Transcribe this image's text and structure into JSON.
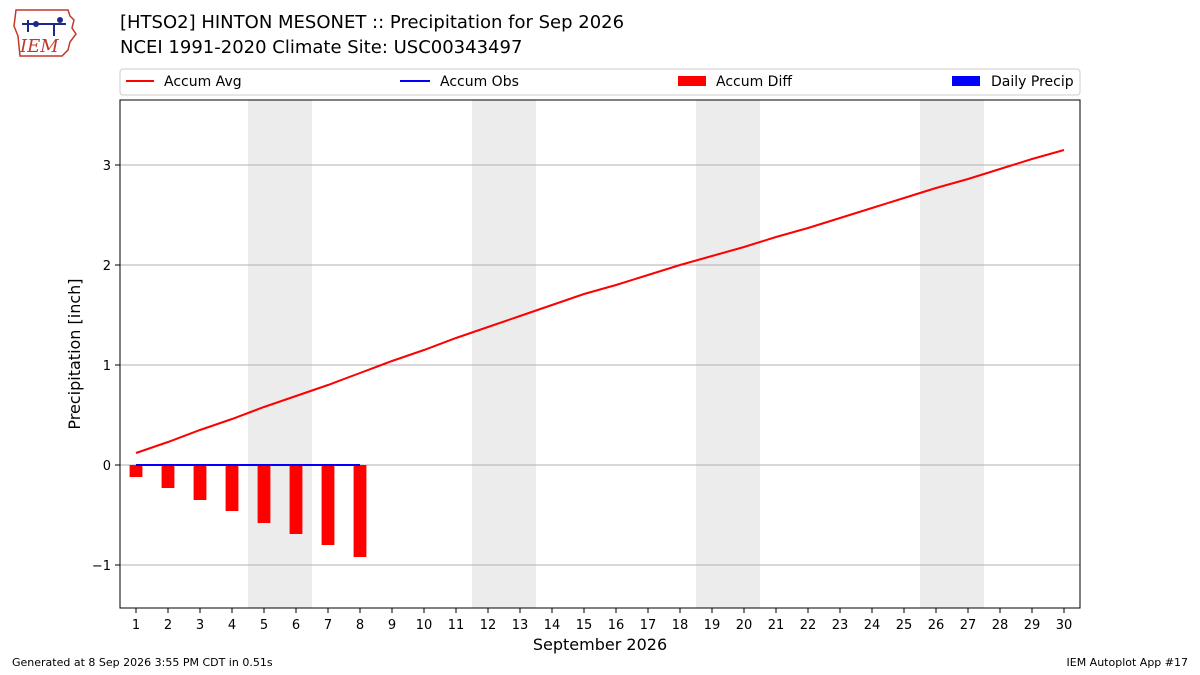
{
  "header": {
    "title": "[HTSO2] HINTON MESONET :: Precipitation for Sep 2026",
    "subtitle": "NCEI 1991-2020 Climate Site: USC00343497",
    "logo_text": "IEM"
  },
  "footer": {
    "generated": "Generated at 8 Sep 2026 3:55 PM CDT in 0.51s",
    "app": "IEM Autoplot App #17"
  },
  "chart_data": {
    "type": "line",
    "title": "[HTSO2] HINTON MESONET :: Precipitation for Sep 2026",
    "subtitle": "NCEI 1991-2020 Climate Site: USC00343497",
    "xlabel": "September 2026",
    "ylabel": "Precipitation [inch]",
    "x": [
      1,
      2,
      3,
      4,
      5,
      6,
      7,
      8,
      9,
      10,
      11,
      12,
      13,
      14,
      15,
      16,
      17,
      18,
      19,
      20,
      21,
      22,
      23,
      24,
      25,
      26,
      27,
      28,
      29,
      30
    ],
    "xlim": [
      0.5,
      30.5
    ],
    "ylim": [
      -1.43,
      3.65
    ],
    "yticks": [
      -1,
      0,
      1,
      2,
      3
    ],
    "ytick_labels": [
      "−1",
      "0",
      "1",
      "2",
      "3"
    ],
    "grid": "horizontal",
    "legend_placement": "top",
    "weekend_shading": [
      [
        4.5,
        6.5
      ],
      [
        11.5,
        13.5
      ],
      [
        18.5,
        20.5
      ],
      [
        25.5,
        27.5
      ]
    ],
    "shading_color": "#ececec",
    "legend": [
      {
        "name": "Accum Avg",
        "kind": "line",
        "color": "#ff0000"
      },
      {
        "name": "Accum Obs",
        "kind": "line",
        "color": "#0000ff"
      },
      {
        "name": "Accum Diff",
        "kind": "bar",
        "color": "#ff0000"
      },
      {
        "name": "Daily Precip",
        "kind": "bar",
        "color": "#0000ff"
      }
    ],
    "series": [
      {
        "name": "Accum Avg",
        "type": "line",
        "color": "#ff0000",
        "x": [
          1,
          2,
          3,
          4,
          5,
          6,
          7,
          8,
          9,
          10,
          11,
          12,
          13,
          14,
          15,
          16,
          17,
          18,
          19,
          20,
          21,
          22,
          23,
          24,
          25,
          26,
          27,
          28,
          29,
          30
        ],
        "values": [
          0.12,
          0.23,
          0.35,
          0.46,
          0.58,
          0.69,
          0.8,
          0.92,
          1.04,
          1.15,
          1.27,
          1.38,
          1.49,
          1.6,
          1.71,
          1.8,
          1.9,
          2.0,
          2.09,
          2.18,
          2.28,
          2.37,
          2.47,
          2.57,
          2.67,
          2.77,
          2.86,
          2.96,
          3.06,
          3.15
        ]
      },
      {
        "name": "Accum Obs",
        "type": "line",
        "color": "#0000ff",
        "x": [
          1,
          2,
          3,
          4,
          5,
          6,
          7,
          8
        ],
        "values": [
          0,
          0,
          0,
          0,
          0,
          0,
          0,
          0
        ]
      },
      {
        "name": "Accum Diff",
        "type": "bar",
        "color": "#ff0000",
        "x": [
          1,
          2,
          3,
          4,
          5,
          6,
          7,
          8
        ],
        "values": [
          -0.12,
          -0.23,
          -0.35,
          -0.46,
          -0.58,
          -0.69,
          -0.8,
          -0.92
        ]
      },
      {
        "name": "Daily Precip",
        "type": "bar",
        "color": "#0000ff",
        "x": [
          1,
          2,
          3,
          4,
          5,
          6,
          7,
          8
        ],
        "values": [
          0,
          0,
          0,
          0,
          0,
          0,
          0,
          0
        ]
      }
    ]
  }
}
